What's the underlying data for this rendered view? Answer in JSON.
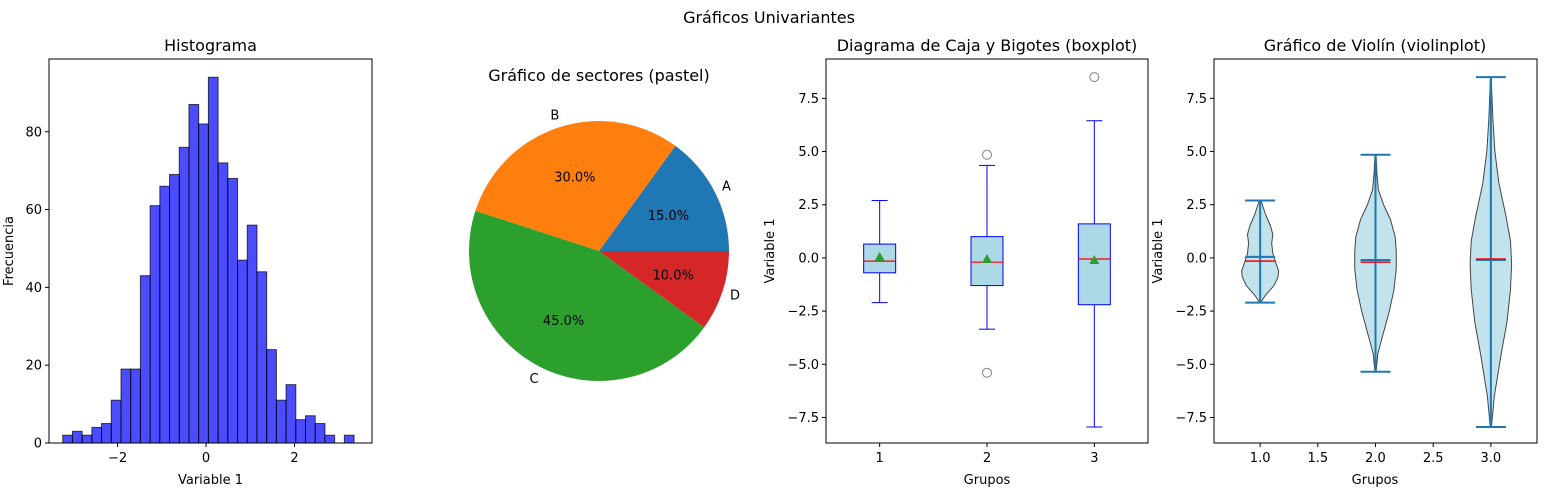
{
  "figure": {
    "suptitle": "Gráficos Univariantes"
  },
  "chart_data": [
    {
      "type": "histogram",
      "title": "Histograma",
      "xlabel": "Variable 1",
      "ylabel": "Frecuencia",
      "xlim": [
        -3.55,
        3.75
      ],
      "ylim": [
        0,
        98.7
      ],
      "xticks": [
        -2,
        0,
        2
      ],
      "xtick_labels": [
        "−2",
        "0",
        "2"
      ],
      "yticks": [
        0,
        20,
        40,
        60,
        80
      ],
      "bin_start": -3.24,
      "bin_width": 0.2195,
      "counts": [
        2,
        3,
        2,
        4,
        5,
        11,
        19,
        19,
        43,
        61,
        66,
        69,
        76,
        87,
        82,
        94,
        72,
        68,
        47,
        56,
        44,
        24,
        11,
        15,
        6,
        7,
        5,
        2,
        0,
        2
      ],
      "bar_color": "#0000ff",
      "bar_alpha": 0.7,
      "edge_color": "#000000"
    },
    {
      "type": "pie",
      "title": "Gráfico de sectores (pastel)",
      "labels": [
        "A",
        "B",
        "C",
        "D"
      ],
      "values": [
        15,
        30,
        45,
        10
      ],
      "pct_labels": [
        "15.0%",
        "30.0%",
        "45.0%",
        "10.0%"
      ],
      "colors": [
        "#1f77b4",
        "#ff7f0e",
        "#2ca02c",
        "#d62728"
      ]
    },
    {
      "type": "boxplot",
      "title": "Diagrama de Caja y Bigotes (boxplot)",
      "xlabel": "Grupos",
      "ylabel": "Variable 1",
      "xlim": [
        0.5,
        3.5
      ],
      "ylim": [
        -8.7,
        9.35
      ],
      "categories": [
        "1",
        "2",
        "3"
      ],
      "yticks": [
        -7.5,
        -5.0,
        -2.5,
        0.0,
        2.5,
        5.0,
        7.5
      ],
      "ytick_labels": [
        "−7.5",
        "−5.0",
        "−2.5",
        "0.0",
        "2.5",
        "5.0",
        "7.5"
      ],
      "boxes": [
        {
          "whislo": -2.1,
          "q1": -0.7,
          "med": -0.15,
          "mean": 0.05,
          "q3": 0.65,
          "whishi": 2.7,
          "fliers": []
        },
        {
          "whislo": -3.35,
          "q1": -1.3,
          "med": -0.2,
          "mean": -0.05,
          "q3": 1.0,
          "whishi": 4.35,
          "fliers": [
            4.85,
            -5.4
          ]
        },
        {
          "whislo": -7.95,
          "q1": -2.2,
          "med": -0.05,
          "mean": -0.1,
          "q3": 1.6,
          "whishi": 6.45,
          "fliers": [
            8.5
          ]
        }
      ],
      "box_face": "#add8e6",
      "box_edge": "#0000ff",
      "median_color": "#ff0000",
      "mean_color": "#2ca02c"
    },
    {
      "type": "violin",
      "title": "Gráfico de Violín (violinplot)",
      "xlabel": "Grupos",
      "ylabel": "Variable 1",
      "xlim": [
        0.6,
        3.4
      ],
      "ylim": [
        -8.7,
        9.35
      ],
      "xticks": [
        1.0,
        1.5,
        2.0,
        2.5,
        3.0
      ],
      "xtick_labels": [
        "1.0",
        "1.5",
        "2.0",
        "2.5",
        "3.0"
      ],
      "yticks": [
        -7.5,
        -5.0,
        -2.5,
        0.0,
        2.5,
        5.0,
        7.5
      ],
      "ytick_labels": [
        "−7.5",
        "−5.0",
        "−2.5",
        "0.0",
        "2.5",
        "5.0",
        "7.5"
      ],
      "violins": [
        {
          "position": 1.0,
          "min": -2.1,
          "max": 2.7,
          "median": -0.15,
          "mean": 0.05,
          "profile": [
            [
              -2.1,
              0.005
            ],
            [
              -1.8,
              0.04
            ],
            [
              -1.3,
              0.12
            ],
            [
              -0.9,
              0.155
            ],
            [
              -0.6,
              0.16
            ],
            [
              -0.3,
              0.14
            ],
            [
              0.2,
              0.11
            ],
            [
              0.7,
              0.1
            ],
            [
              1.1,
              0.11
            ],
            [
              1.5,
              0.09
            ],
            [
              2.0,
              0.05
            ],
            [
              2.4,
              0.025
            ],
            [
              2.7,
              0.008
            ]
          ]
        },
        {
          "position": 2.0,
          "min": -5.35,
          "max": 4.85,
          "median": -0.2,
          "mean": -0.1,
          "profile": [
            [
              -5.35,
              0.005
            ],
            [
              -4.5,
              0.02
            ],
            [
              -3.5,
              0.07
            ],
            [
              -2.5,
              0.12
            ],
            [
              -1.5,
              0.16
            ],
            [
              -0.5,
              0.18
            ],
            [
              0.3,
              0.18
            ],
            [
              1.0,
              0.17
            ],
            [
              1.8,
              0.13
            ],
            [
              2.5,
              0.07
            ],
            [
              3.2,
              0.025
            ],
            [
              4.0,
              0.012
            ],
            [
              4.85,
              0.005
            ]
          ]
        },
        {
          "position": 3.0,
          "min": -7.95,
          "max": 8.5,
          "median": -0.05,
          "mean": -0.1,
          "profile": [
            [
              -7.95,
              0.005
            ],
            [
              -6.5,
              0.03
            ],
            [
              -4.5,
              0.09
            ],
            [
              -3.0,
              0.14
            ],
            [
              -1.5,
              0.17
            ],
            [
              -0.3,
              0.18
            ],
            [
              0.8,
              0.17
            ],
            [
              2.0,
              0.13
            ],
            [
              3.5,
              0.07
            ],
            [
              5.0,
              0.035
            ],
            [
              6.5,
              0.018
            ],
            [
              7.8,
              0.008
            ],
            [
              8.5,
              0.004
            ]
          ]
        }
      ],
      "body_color": "#add8e6",
      "line_color": "#1f77b4",
      "median_color": "#ff0000"
    }
  ]
}
